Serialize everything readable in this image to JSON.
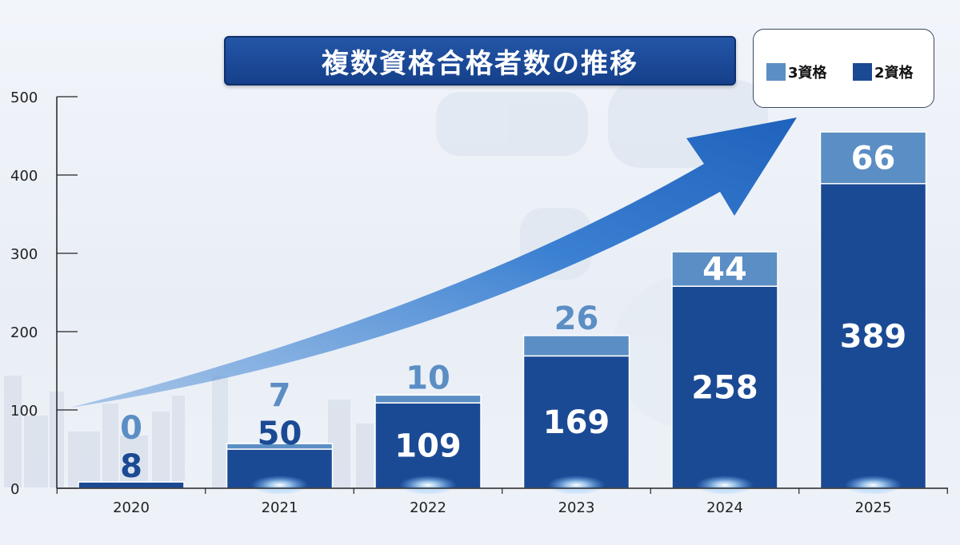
{
  "title": "複数資格合格者数の推移",
  "colors": {
    "series_3": "#5b8ec4",
    "series_2": "#1b4a94",
    "arrow": "#2f76cc",
    "axis": "#222222"
  },
  "chart_data": {
    "type": "bar",
    "stacked": true,
    "title": "複数資格合格者数の推移",
    "categories": [
      "2020",
      "2021",
      "2022",
      "2023",
      "2024",
      "2025"
    ],
    "series": [
      {
        "name": "2資格",
        "values": [
          8,
          50,
          109,
          169,
          258,
          389
        ]
      },
      {
        "name": "3資格",
        "values": [
          0,
          7,
          10,
          26,
          44,
          66
        ]
      }
    ],
    "ylim": [
      0,
      500
    ],
    "yticks": [
      0,
      100,
      200,
      300,
      400,
      500
    ],
    "legend": "top-right",
    "grid": false
  },
  "legend": {
    "items": [
      {
        "label": "3資格",
        "color": "#5b8ec4"
      },
      {
        "label": "2資格",
        "color": "#1b4a94"
      }
    ]
  }
}
